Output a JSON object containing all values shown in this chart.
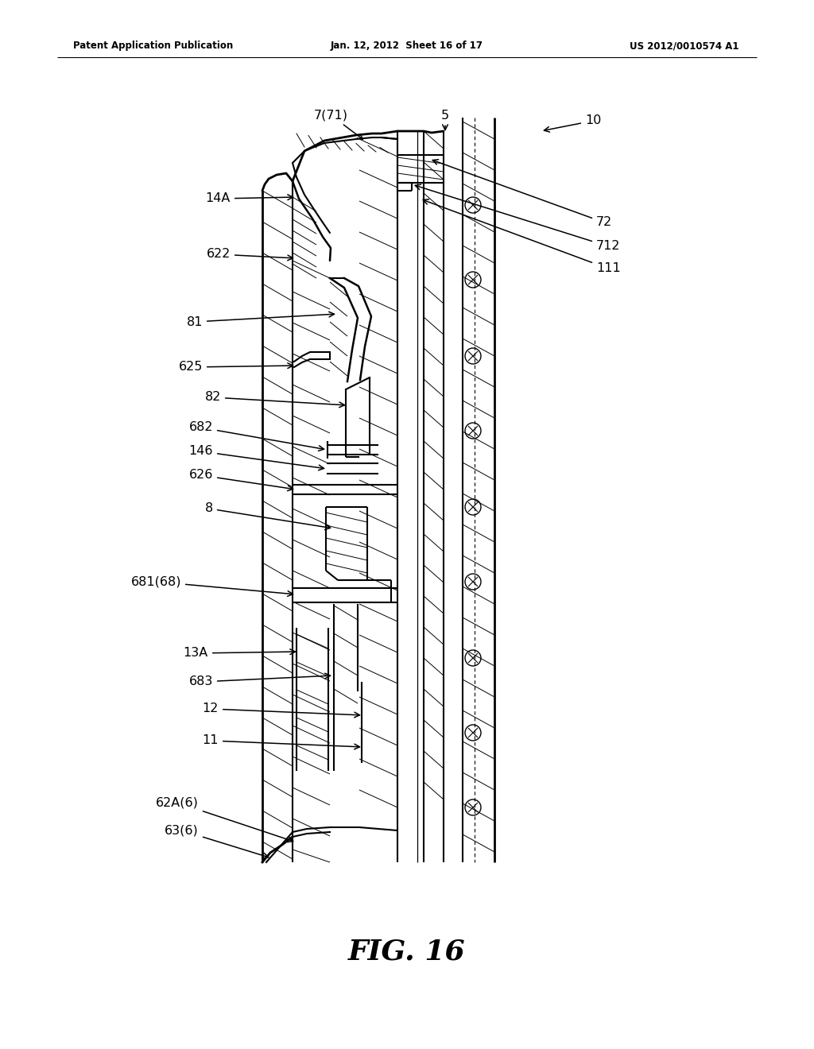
{
  "header_left": "Patent Application Publication",
  "header_center": "Jan. 12, 2012  Sheet 16 of 17",
  "header_right": "US 2012/0010574 A1",
  "fig_label": "FIG. 16",
  "bg_color": "#ffffff"
}
